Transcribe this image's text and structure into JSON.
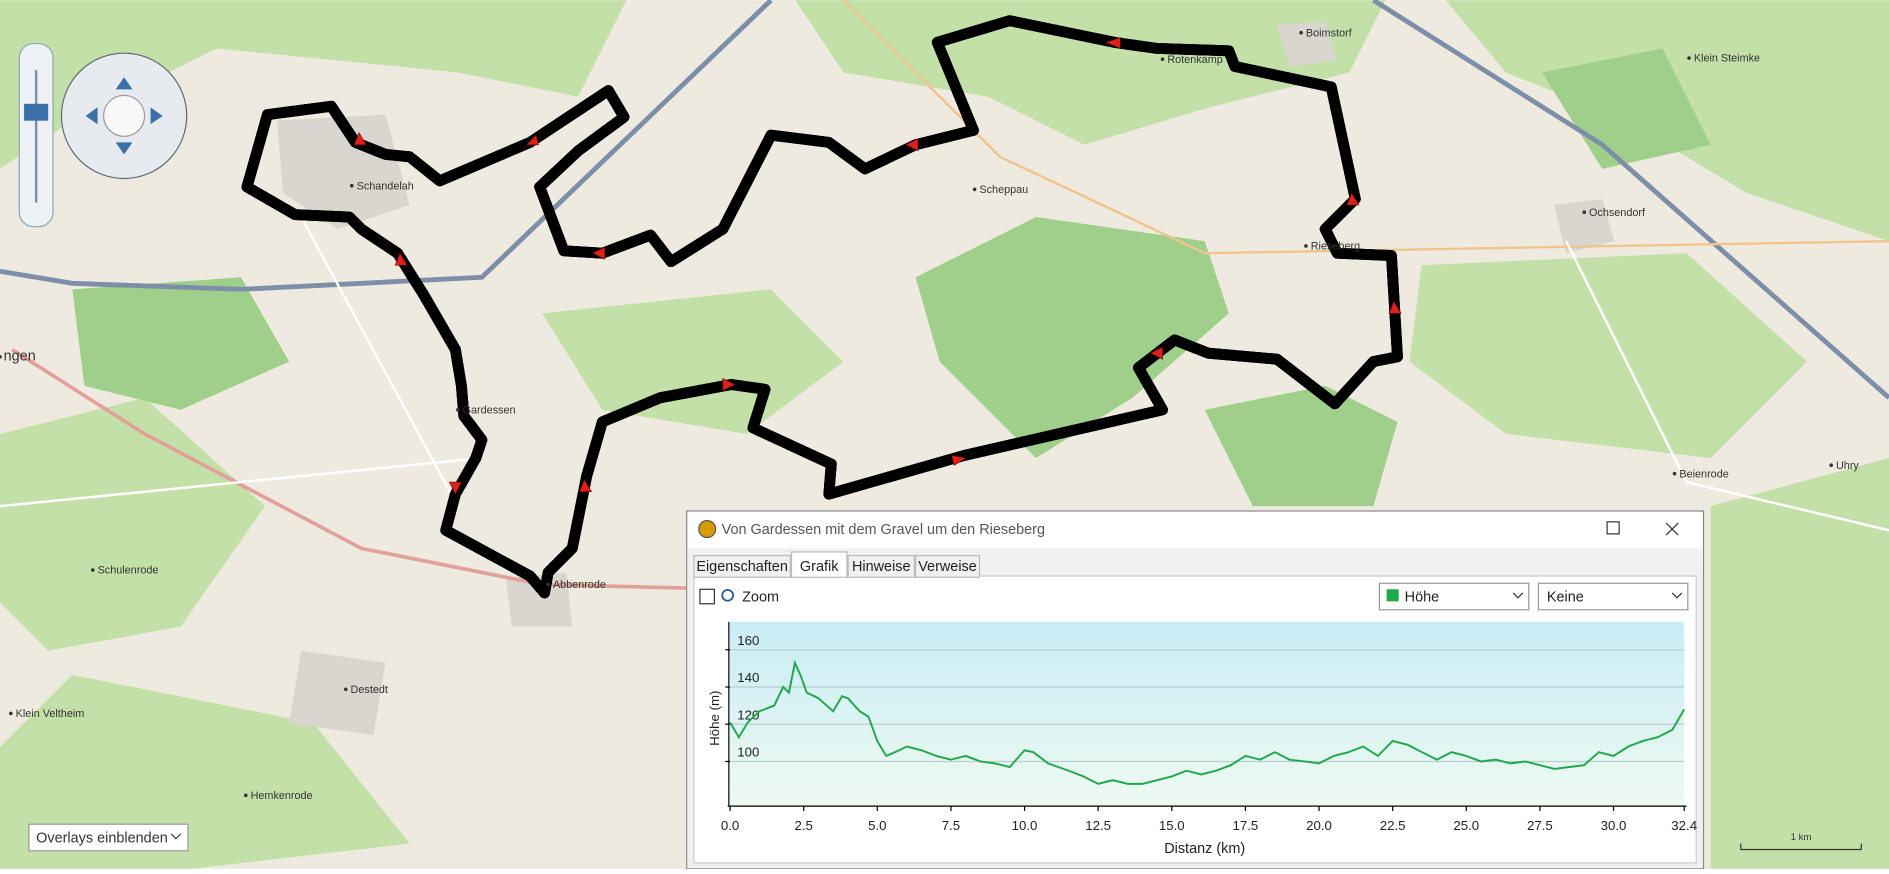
{
  "map": {
    "places": [
      "Boimstorf",
      "Klein Steimke",
      "Rotenkamp",
      "Schandelah",
      "Scheppau",
      "Ochsendorf",
      "Rieseberg",
      "ngen",
      "Gardessen",
      "Beienrode",
      "Uhry",
      "Schulenrode",
      "Abbenrode",
      "Destedt",
      "Klein Veltheim",
      "Hemkenrode"
    ],
    "overlays": "Overlays einblenden",
    "scale": "1 km"
  },
  "window": {
    "title": "Von Gardessen mit dem Gravel um den Rieseberg",
    "tabs": [
      "Eigenschaften",
      "Grafik",
      "Hinweise",
      "Verweise"
    ],
    "zoom": "Zoom",
    "series_select": "Höhe",
    "second_select": "Keine"
  },
  "chart_data": {
    "type": "line",
    "xlabel": "Distanz  (km)",
    "ylabel": "Höhe (m)",
    "color": "#1fa84a",
    "x": [
      0,
      0.3,
      0.6,
      1.0,
      1.5,
      1.8,
      2.0,
      2.2,
      2.4,
      2.6,
      3.0,
      3.5,
      3.8,
      4.0,
      4.4,
      4.7,
      5.0,
      5.3,
      5.6,
      6.0,
      6.5,
      7.0,
      7.5,
      8.0,
      8.5,
      9.0,
      9.5,
      10.0,
      10.3,
      10.8,
      11.5,
      12.0,
      12.5,
      13.0,
      13.5,
      14.0,
      14.5,
      15.0,
      15.5,
      16.0,
      16.5,
      17.0,
      17.5,
      18.0,
      18.5,
      19.0,
      19.5,
      20.0,
      20.5,
      21.0,
      21.5,
      22.0,
      22.5,
      23.0,
      23.5,
      24.0,
      24.5,
      25.0,
      25.5,
      26.0,
      26.5,
      27.0,
      27.5,
      28.0,
      28.5,
      29.0,
      29.5,
      30.0,
      30.5,
      31.0,
      31.5,
      32.0,
      32.4
    ],
    "values": [
      121,
      113,
      121,
      127,
      130,
      140,
      137,
      153,
      146,
      137,
      134,
      127,
      135,
      134,
      127,
      124,
      111,
      103,
      105,
      108,
      106,
      103,
      101,
      103,
      100,
      99,
      97,
      106,
      105,
      99,
      95,
      92,
      88,
      90,
      88,
      88,
      90,
      92,
      95,
      93,
      95,
      98,
      103,
      101,
      105,
      101,
      100,
      99,
      103,
      105,
      108,
      103,
      111,
      109,
      105,
      101,
      105,
      103,
      100,
      101,
      99,
      100,
      98,
      96,
      97,
      98,
      105,
      103,
      108,
      111,
      113,
      117,
      128
    ],
    "xlim": [
      0,
      32.4
    ],
    "ylim": [
      76,
      175
    ],
    "xticks": [
      {
        "value": 0,
        "label": "0.0"
      },
      2.5,
      {
        "value": 5,
        "label": "5.0"
      },
      7.5,
      {
        "value": 10,
        "label": "10.0"
      },
      12.5,
      {
        "value": 15,
        "label": "15.0"
      },
      17.5,
      {
        "value": 20,
        "label": "20.0"
      },
      22.5,
      {
        "value": 25,
        "label": "25.0"
      },
      27.5,
      {
        "value": 30,
        "label": "30.0"
      },
      32.4
    ],
    "yticks": [
      100,
      120,
      140,
      160
    ],
    "grid": true
  }
}
